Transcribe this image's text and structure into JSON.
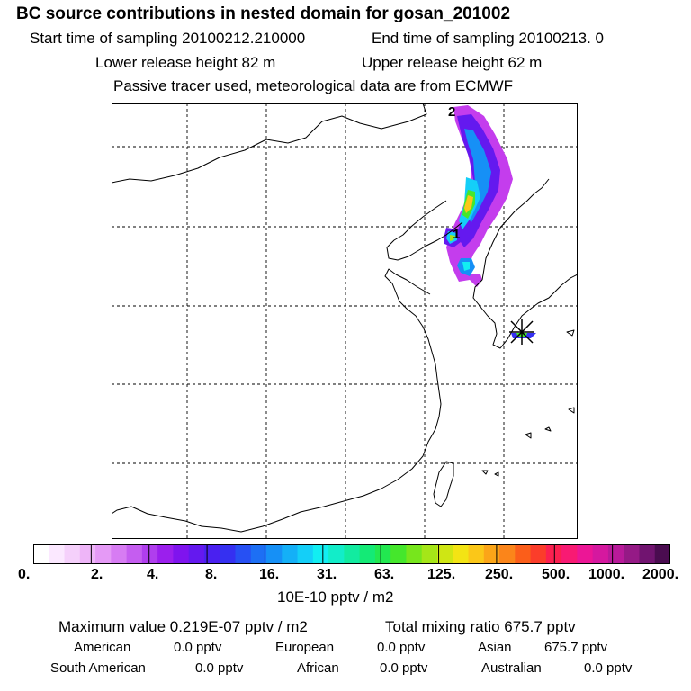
{
  "header": {
    "title": "BC  source contributions in nested domain for gosan_201002",
    "start_time": "Start time of sampling 20100212.210000",
    "end_time": "End time of sampling 20100213.     0",
    "lower_release": "Lower release height   82 m",
    "upper_release": "Upper release height   62 m",
    "tracer_note": "Passive tracer used, meteorological data are from ECMWF"
  },
  "map": {
    "plume_label_1": "1",
    "plume_label_2": "2",
    "receptor_marker": "gosan-receptor"
  },
  "colorbar": {
    "tick_labels": [
      "0.",
      "2.",
      "4.",
      "8.",
      "16.",
      "31.",
      "63.",
      "125.",
      "250.",
      "500.",
      "1000.",
      "2000."
    ],
    "unit_label": "10E-10 pptv / m2",
    "colors": [
      "#ffffff",
      "#fbe8ff",
      "#f5d0fb",
      "#eeb5f8",
      "#e59af6",
      "#d77cf3",
      "#c55df0",
      "#b03eee",
      "#9b1fed",
      "#7f14ee",
      "#6419ef",
      "#4a20f0",
      "#3530f1",
      "#2750f3",
      "#1d6ff4",
      "#1690f6",
      "#14b0f7",
      "#14cff8",
      "#12eef2",
      "#12edc9",
      "#12eba0",
      "#14ea76",
      "#22e850",
      "#45e72c",
      "#77e61c",
      "#a5e618",
      "#cfe614",
      "#f3e414",
      "#fbc718",
      "#fba518",
      "#fb851a",
      "#fb5e1a",
      "#fb3d2a",
      "#fb2050",
      "#f81a73",
      "#ec1696",
      "#d5189f",
      "#b81a9a",
      "#951a86",
      "#711470",
      "#4a0c50"
    ]
  },
  "summary": {
    "maximum": "Maximum value  0.219E-07 pptv / m2",
    "total_mixing": "Total mixing ratio     675.7 pptv",
    "american_label": "American",
    "american_value": "0.0 pptv",
    "european_label": "European",
    "european_value": "0.0 pptv",
    "asian_label": "Asian",
    "asian_value": "675.7 pptv",
    "south_american_label": "South American",
    "south_american_value": "0.0 pptv",
    "african_label": "African",
    "african_value": "0.0 pptv",
    "australian_label": "Australian",
    "australian_value": "0.0 pptv"
  }
}
